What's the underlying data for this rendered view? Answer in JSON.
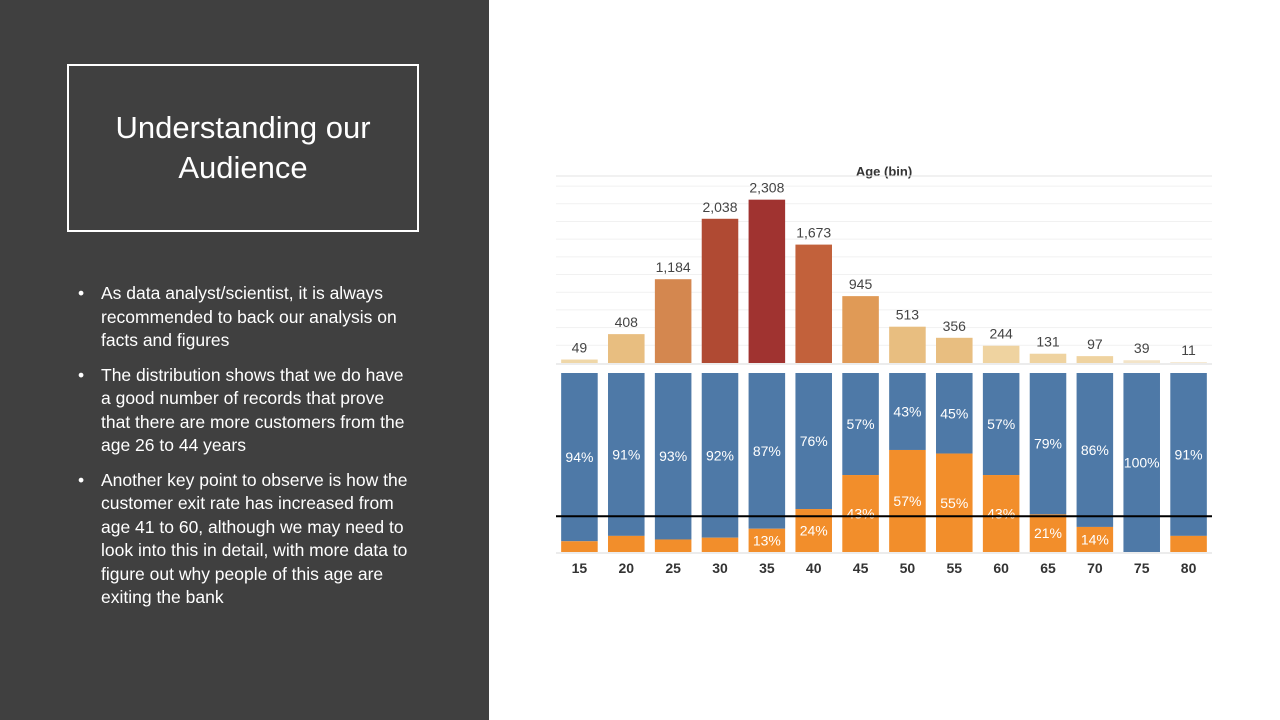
{
  "slide": {
    "title": "Understanding our Audience",
    "bullets": [
      "As data analyst/scientist, it is always recommended  to back our analysis on facts and figures",
      "The distribution shows that we do have a good number of records that prove that there are more customers from the age 26 to 44 years",
      "Another key point to observe is how the customer exit rate has increased from age 41 to 60, although we may need to look into this in detail, with more data to figure out why people of this age are exiting the bank"
    ]
  },
  "chart_data": [
    {
      "type": "bar",
      "title": "Age (bin)",
      "categories": [
        "15",
        "20",
        "25",
        "30",
        "35",
        "40",
        "45",
        "50",
        "55",
        "60",
        "65",
        "70",
        "75",
        "80"
      ],
      "values": [
        49,
        408,
        1184,
        2038,
        2308,
        1673,
        945,
        513,
        356,
        244,
        131,
        97,
        39,
        11
      ],
      "ylim": [
        0,
        2600
      ],
      "bar_colors": [
        "#efd7a8",
        "#e8be80",
        "#d4874f",
        "#b04a33",
        "#a03330",
        "#c2613b",
        "#e09a56",
        "#e8be80",
        "#e8be80",
        "#efd3a0",
        "#efd3a0",
        "#efd3a0",
        "#f3e4c8",
        "#f3e4c8"
      ],
      "grid": true
    },
    {
      "type": "bar",
      "stacked": true,
      "percent": true,
      "categories": [
        "15",
        "20",
        "25",
        "30",
        "35",
        "40",
        "45",
        "50",
        "55",
        "60",
        "65",
        "70",
        "75",
        "80"
      ],
      "series": [
        {
          "color": "#4e79a7",
          "values": [
            94,
            91,
            93,
            92,
            87,
            76,
            57,
            43,
            45,
            57,
            79,
            86,
            100,
            91
          ],
          "labels": [
            "94%",
            "91%",
            "93%",
            "92%",
            "87%",
            "76%",
            "57%",
            "43%",
            "45%",
            "57%",
            "79%",
            "86%",
            "100%",
            "91%"
          ]
        },
        {
          "color": "#f28e2b",
          "values": [
            6,
            9,
            7,
            8,
            13,
            24,
            43,
            57,
            55,
            43,
            21,
            14,
            0,
            9
          ],
          "labels": [
            "",
            "",
            "",
            "",
            "13%",
            "24%",
            "43%",
            "57%",
            "55%",
            "43%",
            "21%",
            "14%",
            "",
            ""
          ]
        }
      ],
      "reference_line": 20,
      "ylim": [
        0,
        100
      ]
    }
  ]
}
